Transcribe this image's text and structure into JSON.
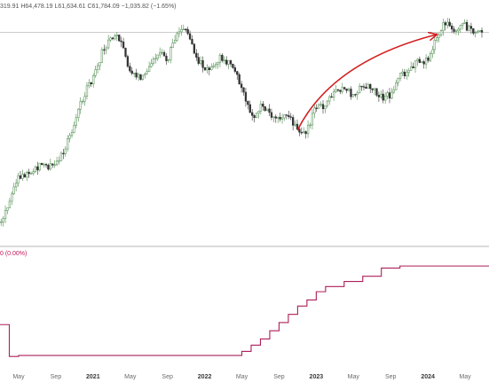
{
  "ohlc": {
    "text": "319.91 H64,478.19 L61,634.61 C61,784.09 −1,035.82 (−1.65%)"
  },
  "indicator": {
    "text": "0 (0.00%)"
  },
  "colors": {
    "up": "#4c8a4c",
    "down": "#333333",
    "indicator_line": "#ad1f5a",
    "annotation_arrow": "#d21f1f",
    "price_line": "#9a9a9a",
    "pane_separator": "#b5b5b5"
  },
  "chart_data": [
    {
      "type": "candlestick",
      "interval": "weekly",
      "title": "",
      "x_range": [
        "2020-03",
        "2024-07"
      ],
      "ylim": [
        4000,
        73000
      ],
      "y_scale": "log",
      "grid": false,
      "reference_price_line": 61784.09,
      "price_path": [
        [
          "2020-03",
          5000
        ],
        [
          "2020-05",
          9000
        ],
        [
          "2020-07",
          10500
        ],
        [
          "2020-09",
          10700
        ],
        [
          "2020-10",
          13500
        ],
        [
          "2020-11",
          18500
        ],
        [
          "2020-12",
          27000
        ],
        [
          "2021-01",
          33000
        ],
        [
          "2021-02",
          48000
        ],
        [
          "2021-03",
          57000
        ],
        [
          "2021-04",
          58000
        ],
        [
          "2021-05",
          36000
        ],
        [
          "2021-06",
          34000
        ],
        [
          "2021-07",
          38000
        ],
        [
          "2021-08",
          48000
        ],
        [
          "2021-09",
          43000
        ],
        [
          "2021-10",
          61000
        ],
        [
          "2021-11",
          65000
        ],
        [
          "2021-12",
          46000
        ],
        [
          "2022-01",
          37000
        ],
        [
          "2022-02",
          41000
        ],
        [
          "2022-03",
          45000
        ],
        [
          "2022-04",
          38000
        ],
        [
          "2022-05",
          30000
        ],
        [
          "2022-06",
          19500
        ],
        [
          "2022-07",
          23000
        ],
        [
          "2022-08",
          21000
        ],
        [
          "2022-09",
          19500
        ],
        [
          "2022-10",
          20500
        ],
        [
          "2022-11",
          16500
        ],
        [
          "2022-12",
          16800
        ],
        [
          "2023-01",
          23000
        ],
        [
          "2023-02",
          23500
        ],
        [
          "2023-03",
          28000
        ],
        [
          "2023-04",
          29500
        ],
        [
          "2023-05",
          27000
        ],
        [
          "2023-06",
          30500
        ],
        [
          "2023-07",
          29500
        ],
        [
          "2023-08",
          26000
        ],
        [
          "2023-09",
          27000
        ],
        [
          "2023-10",
          34500
        ],
        [
          "2023-11",
          37500
        ],
        [
          "2023-12",
          42500
        ],
        [
          "2024-01",
          42500
        ],
        [
          "2024-02",
          61000
        ],
        [
          "2024-03",
          70000
        ],
        [
          "2024-04",
          64000
        ],
        [
          "2024-05",
          67500
        ],
        [
          "2024-06",
          62000
        ],
        [
          "2024-07",
          64500
        ]
      ],
      "annotations": [
        {
          "type": "hand-drawn arrow",
          "from": [
            "2022-11",
            17000
          ],
          "to": [
            "2024-02",
            60000
          ]
        }
      ]
    },
    {
      "type": "step-line",
      "title": "",
      "ylim": [
        0,
        100
      ],
      "grid": false,
      "x": [
        "2020-03",
        "2020-04",
        "2020-05",
        "2021-01",
        "2021-09",
        "2022-01",
        "2022-05",
        "2022-06",
        "2022-07",
        "2022-08",
        "2022-09",
        "2022-10",
        "2022-11",
        "2022-12",
        "2023-01",
        "2023-02",
        "2023-04",
        "2023-06",
        "2023-08",
        "2023-10",
        "2024-07"
      ],
      "values": [
        36,
        5,
        6,
        6,
        6,
        6,
        10,
        16,
        22,
        30,
        38,
        46,
        54,
        60,
        68,
        73,
        78,
        83,
        91,
        93,
        93
      ]
    }
  ],
  "x_axis": {
    "tick_labels": [
      "May",
      "Sep",
      "2021",
      "May",
      "Sep",
      "2022",
      "May",
      "Sep",
      "2023",
      "May",
      "Sep",
      "2024",
      "May"
    ],
    "bold_labels": [
      "2021",
      "2022",
      "2023",
      "2024"
    ]
  }
}
